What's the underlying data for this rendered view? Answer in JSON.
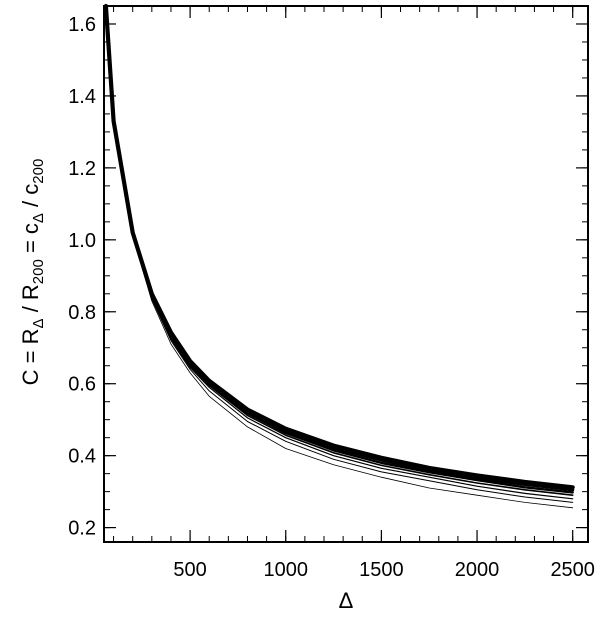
{
  "chart_data": {
    "type": "line",
    "title": "",
    "xlabel": "Δ",
    "ylabel": {
      "parts": [
        {
          "t": "C = R",
          "sub": false
        },
        {
          "t": "Δ",
          "sub": true
        },
        {
          "t": " / R",
          "sub": false
        },
        {
          "t": "200",
          "sub": true
        },
        {
          "t": " = c",
          "sub": false
        },
        {
          "t": "Δ",
          "sub": true
        },
        {
          "t": " / c",
          "sub": false
        },
        {
          "t": "200",
          "sub": true
        }
      ]
    },
    "xlim": [
      50,
      2580
    ],
    "ylim": [
      0.16,
      1.65
    ],
    "xticks": [
      500,
      1000,
      1500,
      2000,
      2500
    ],
    "xtick_labels": [
      "500",
      "1000",
      "1500",
      "2000",
      "2500"
    ],
    "yticks": [
      0.2,
      0.4,
      0.6,
      0.8,
      1.0,
      1.2,
      1.4,
      1.6
    ],
    "ytick_labels": [
      "0.2",
      "0.4",
      "0.6",
      "0.8",
      "1.0",
      "1.2",
      "1.4",
      "1.6"
    ],
    "x_minor_step": 100,
    "y_minor_step": 0.05,
    "grid": false,
    "series_style": "black curves, several overlapping from thin to thick",
    "series": [
      {
        "width": 0.8,
        "x": [
          60,
          100,
          200,
          300,
          400,
          500,
          600,
          800,
          1000,
          1250,
          1500,
          1750,
          2000,
          2250,
          2500
        ],
        "values": [
          1.65,
          1.33,
          1.01,
          0.83,
          0.71,
          0.63,
          0.565,
          0.48,
          0.42,
          0.375,
          0.34,
          0.31,
          0.29,
          0.27,
          0.255
        ]
      },
      {
        "width": 1.0,
        "x": [
          60,
          100,
          200,
          300,
          400,
          500,
          600,
          800,
          1000,
          1250,
          1500,
          1750,
          2000,
          2250,
          2500
        ],
        "values": [
          1.65,
          1.33,
          1.01,
          0.835,
          0.72,
          0.64,
          0.58,
          0.495,
          0.44,
          0.39,
          0.355,
          0.33,
          0.305,
          0.285,
          0.27
        ]
      },
      {
        "width": 1.2,
        "x": [
          60,
          100,
          200,
          300,
          400,
          500,
          600,
          800,
          1000,
          1250,
          1500,
          1750,
          2000,
          2250,
          2500
        ],
        "values": [
          1.65,
          1.33,
          1.015,
          0.84,
          0.725,
          0.645,
          0.59,
          0.505,
          0.45,
          0.4,
          0.365,
          0.34,
          0.315,
          0.295,
          0.28
        ]
      },
      {
        "width": 1.6,
        "x": [
          60,
          100,
          200,
          300,
          400,
          500,
          600,
          800,
          1000,
          1250,
          1500,
          1750,
          2000,
          2250,
          2500
        ],
        "values": [
          1.65,
          1.33,
          1.015,
          0.842,
          0.73,
          0.65,
          0.595,
          0.512,
          0.457,
          0.408,
          0.373,
          0.347,
          0.324,
          0.305,
          0.29
        ]
      },
      {
        "width": 2.4,
        "x": [
          60,
          100,
          200,
          300,
          400,
          500,
          600,
          800,
          1000,
          1250,
          1500,
          1750,
          2000,
          2250,
          2500
        ],
        "values": [
          1.65,
          1.33,
          1.018,
          0.845,
          0.735,
          0.655,
          0.6,
          0.518,
          0.463,
          0.415,
          0.38,
          0.354,
          0.332,
          0.312,
          0.298
        ]
      },
      {
        "width": 3.2,
        "x": [
          60,
          100,
          200,
          300,
          400,
          500,
          600,
          800,
          1000,
          1250,
          1500,
          1750,
          2000,
          2250,
          2500
        ],
        "values": [
          1.65,
          1.33,
          1.02,
          0.848,
          0.738,
          0.66,
          0.605,
          0.524,
          0.47,
          0.422,
          0.388,
          0.36,
          0.338,
          0.32,
          0.305
        ]
      },
      {
        "width": 4.2,
        "x": [
          60,
          100,
          200,
          300,
          400,
          500,
          600,
          800,
          1000,
          1250,
          1500,
          1750,
          2000,
          2250,
          2500
        ],
        "values": [
          1.65,
          1.33,
          1.02,
          0.85,
          0.742,
          0.663,
          0.608,
          0.528,
          0.475,
          0.428,
          0.394,
          0.366,
          0.345,
          0.327,
          0.312
        ]
      }
    ]
  }
}
